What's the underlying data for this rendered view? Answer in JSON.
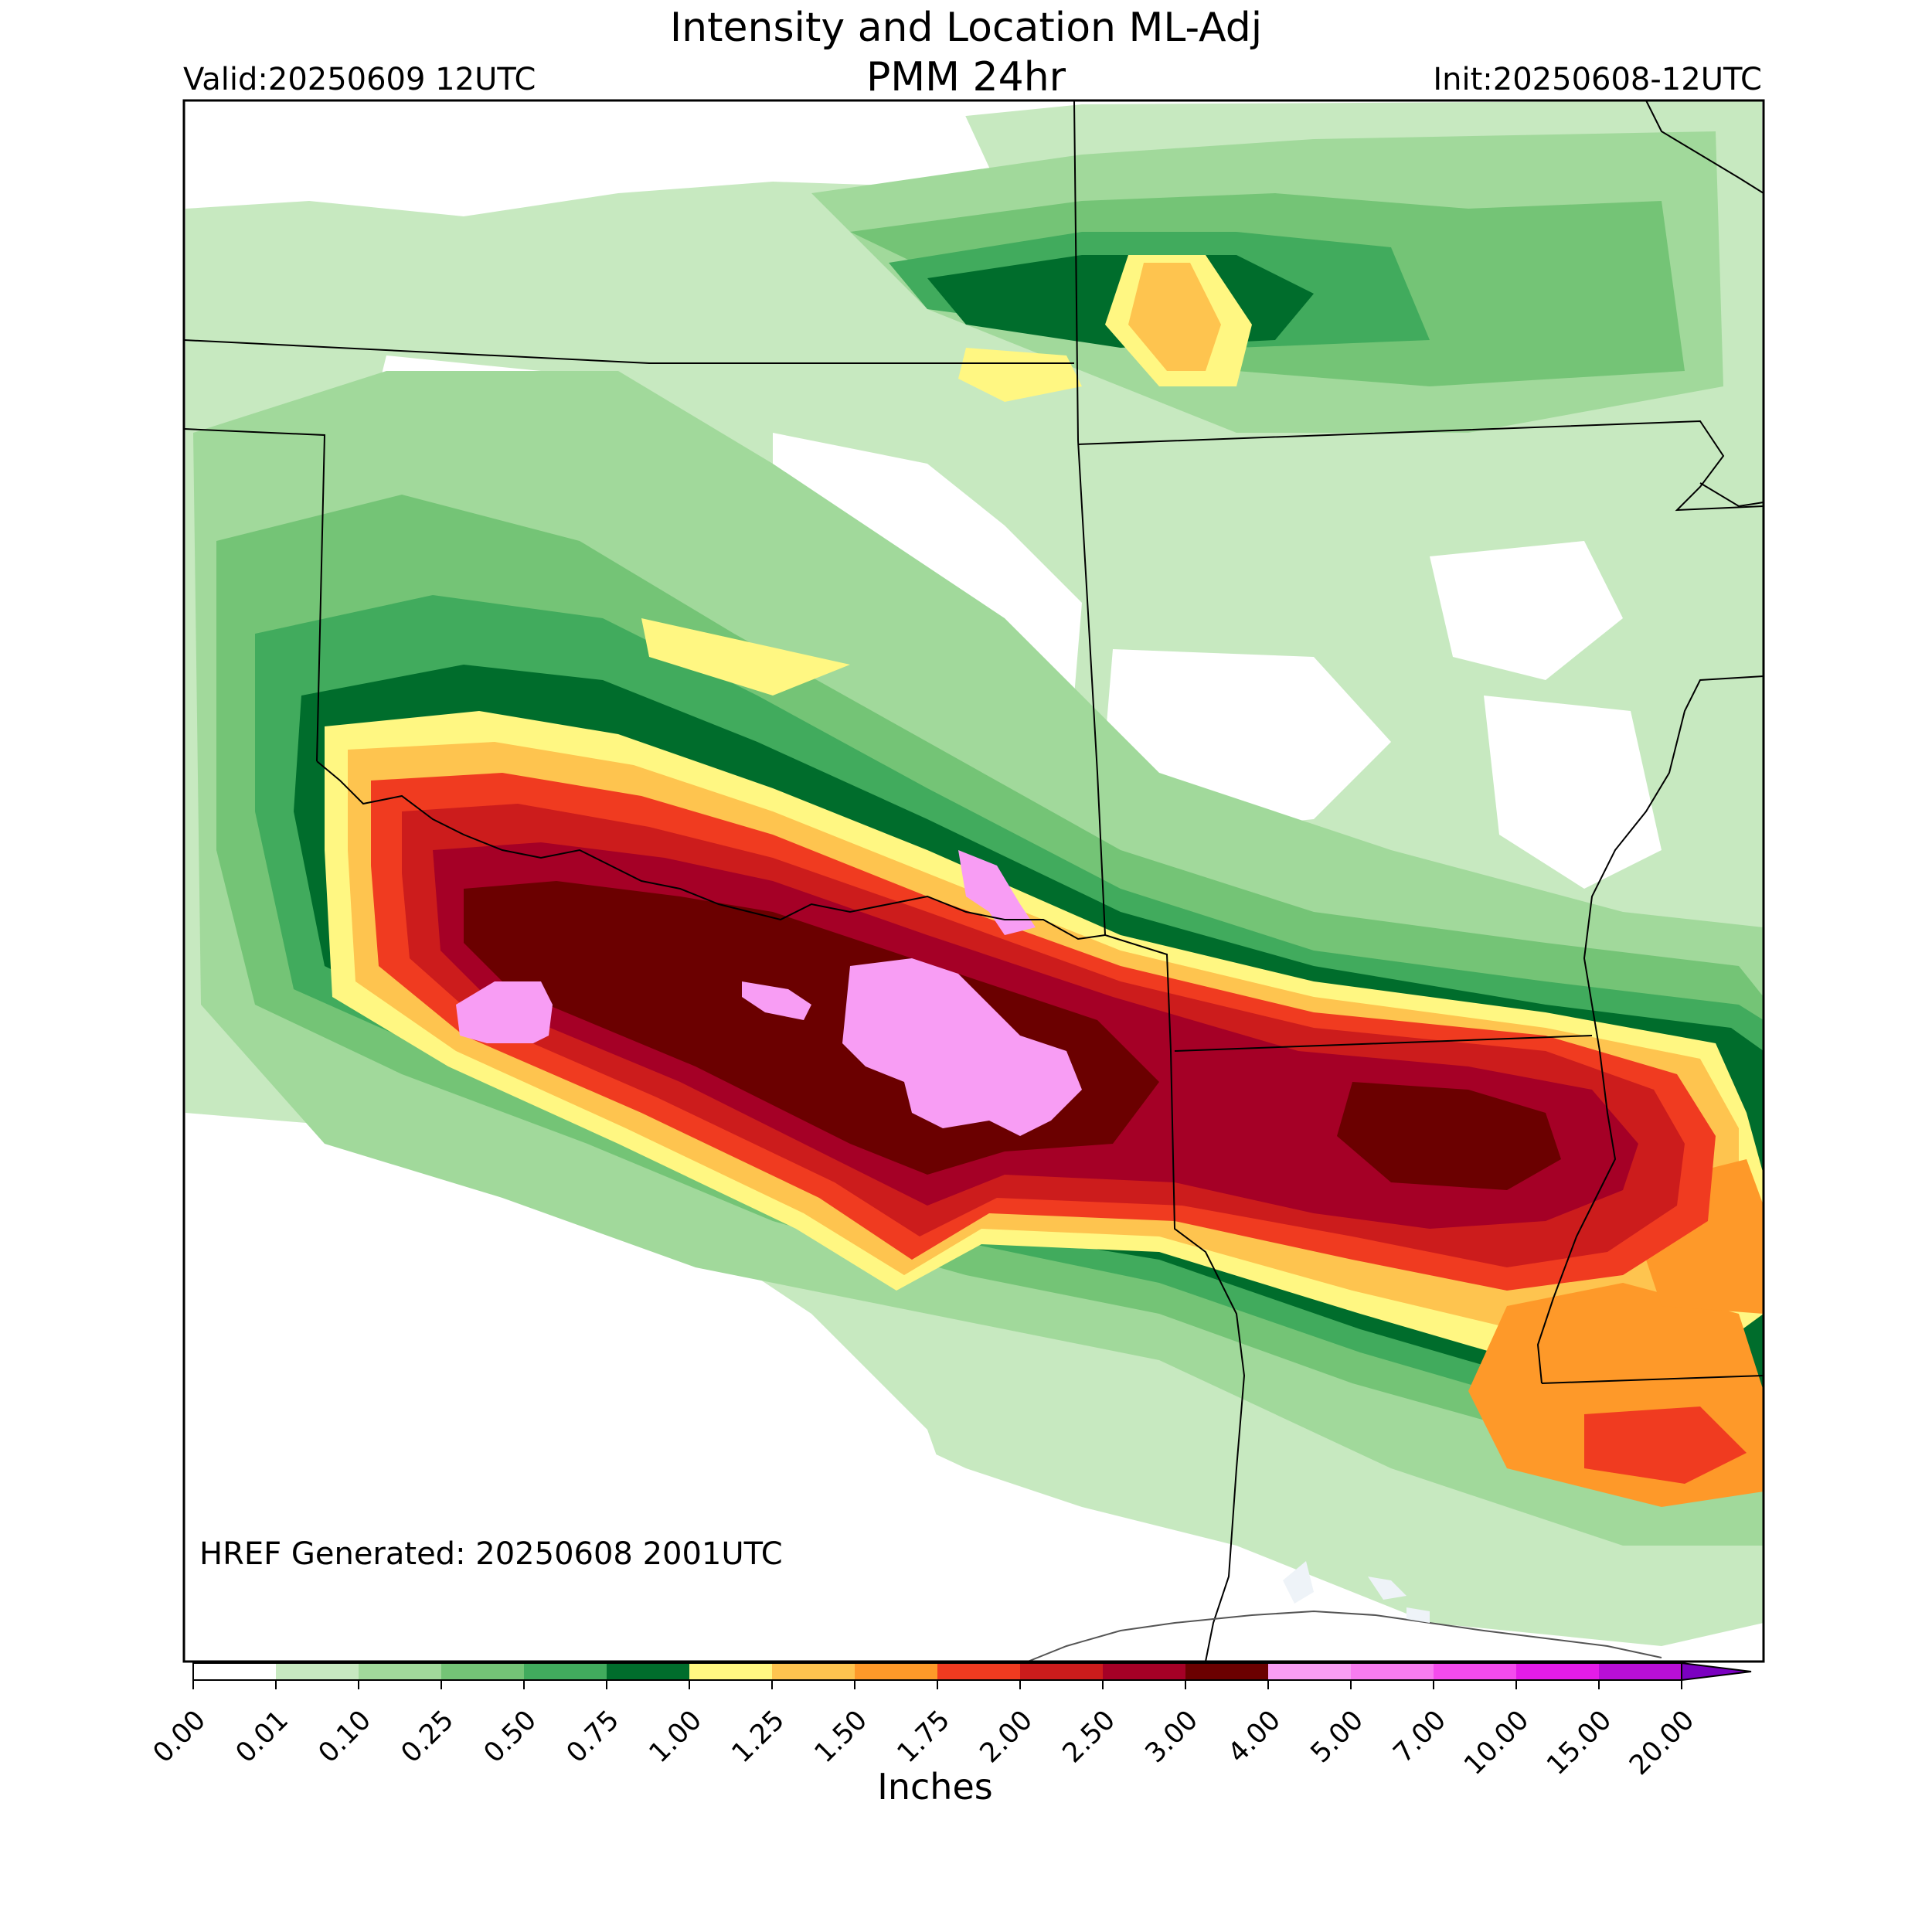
{
  "header": {
    "title": "Intensity and Location ML-Adj",
    "subtitle": "PMM 24hr",
    "valid": "Valid:20250609 12UTC",
    "init": "Init:20250608-12UTC"
  },
  "map": {
    "generated_note": "HREF Generated: 20250608 2001UTC",
    "rain_max_category": "4.00-5.00",
    "regions_description": [
      {
        "color": "#c7e9c0",
        "level": "0.01-0.10"
      },
      {
        "color": "#a1d99b",
        "level": "0.10-0.25"
      },
      {
        "color": "#74c476",
        "level": "0.25-0.50"
      },
      {
        "color": "#41ab5d",
        "level": "0.50-0.75"
      },
      {
        "color": "#006d2c",
        "level": "0.75-1.00"
      },
      {
        "color": "#fff782",
        "level": "1.00-1.25"
      },
      {
        "color": "#fec44f",
        "level": "1.25-1.50"
      },
      {
        "color": "#fe9929",
        "level": "1.50-1.75"
      },
      {
        "color": "#f03b20",
        "level": "1.75-2.00"
      },
      {
        "color": "#cc1c1c",
        "level": "2.00-2.50"
      },
      {
        "color": "#a50026",
        "level": "2.50-3.00"
      },
      {
        "color": "#6b0000",
        "level": "3.00-4.00"
      },
      {
        "color": "#f89df4",
        "level": "4.00-5.00"
      }
    ]
  },
  "colorbar": {
    "label": "Inches",
    "ticks": [
      "0.00",
      "0.01",
      "0.10",
      "0.25",
      "0.50",
      "0.75",
      "1.00",
      "1.25",
      "1.50",
      "1.75",
      "2.00",
      "2.50",
      "3.00",
      "4.00",
      "5.00",
      "7.00",
      "10.00",
      "15.00",
      "20.00"
    ],
    "colors": [
      "#ffffff",
      "#c7e9c0",
      "#a1d99b",
      "#74c476",
      "#41ab5d",
      "#006d2c",
      "#fff782",
      "#fec44f",
      "#fe9929",
      "#f03b20",
      "#cc1c1c",
      "#a50026",
      "#6b0000",
      "#f89df4",
      "#f77cf0",
      "#f44bed",
      "#e41ce8",
      "#b80fd6"
    ],
    "extend_color": "#7b00c0"
  }
}
